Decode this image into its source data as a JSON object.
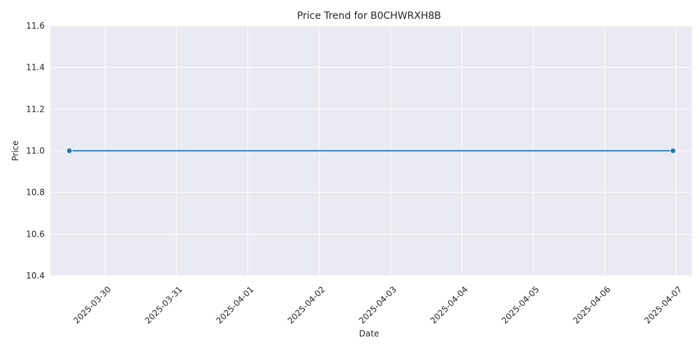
{
  "chart_data": {
    "type": "line",
    "title": "Price Trend for B0CHWRXH8B",
    "xlabel": "Date",
    "ylabel": "Price",
    "x_type": "date",
    "xlim": [
      "2025-03-29T05:36",
      "2025-04-07T05:24"
    ],
    "ylim": [
      10.4,
      11.6
    ],
    "xticks": [
      "2025-03-30",
      "2025-03-31",
      "2025-04-01",
      "2025-04-02",
      "2025-04-03",
      "2025-04-04",
      "2025-04-05",
      "2025-04-06",
      "2025-04-07"
    ],
    "yticks": [
      "10.4",
      "10.6",
      "10.8",
      "11.0",
      "11.2",
      "11.4",
      "11.6"
    ],
    "series": [
      {
        "x": [
          "2025-03-29T12:00",
          "2025-04-06T23:00"
        ],
        "y": [
          11.0,
          11.0
        ]
      }
    ],
    "grid": true,
    "legend": "none",
    "colors": {
      "plot_bg": "#eaeaf2",
      "grid": "#ffffff",
      "line": "#1f77b4",
      "text": "#262626"
    }
  }
}
